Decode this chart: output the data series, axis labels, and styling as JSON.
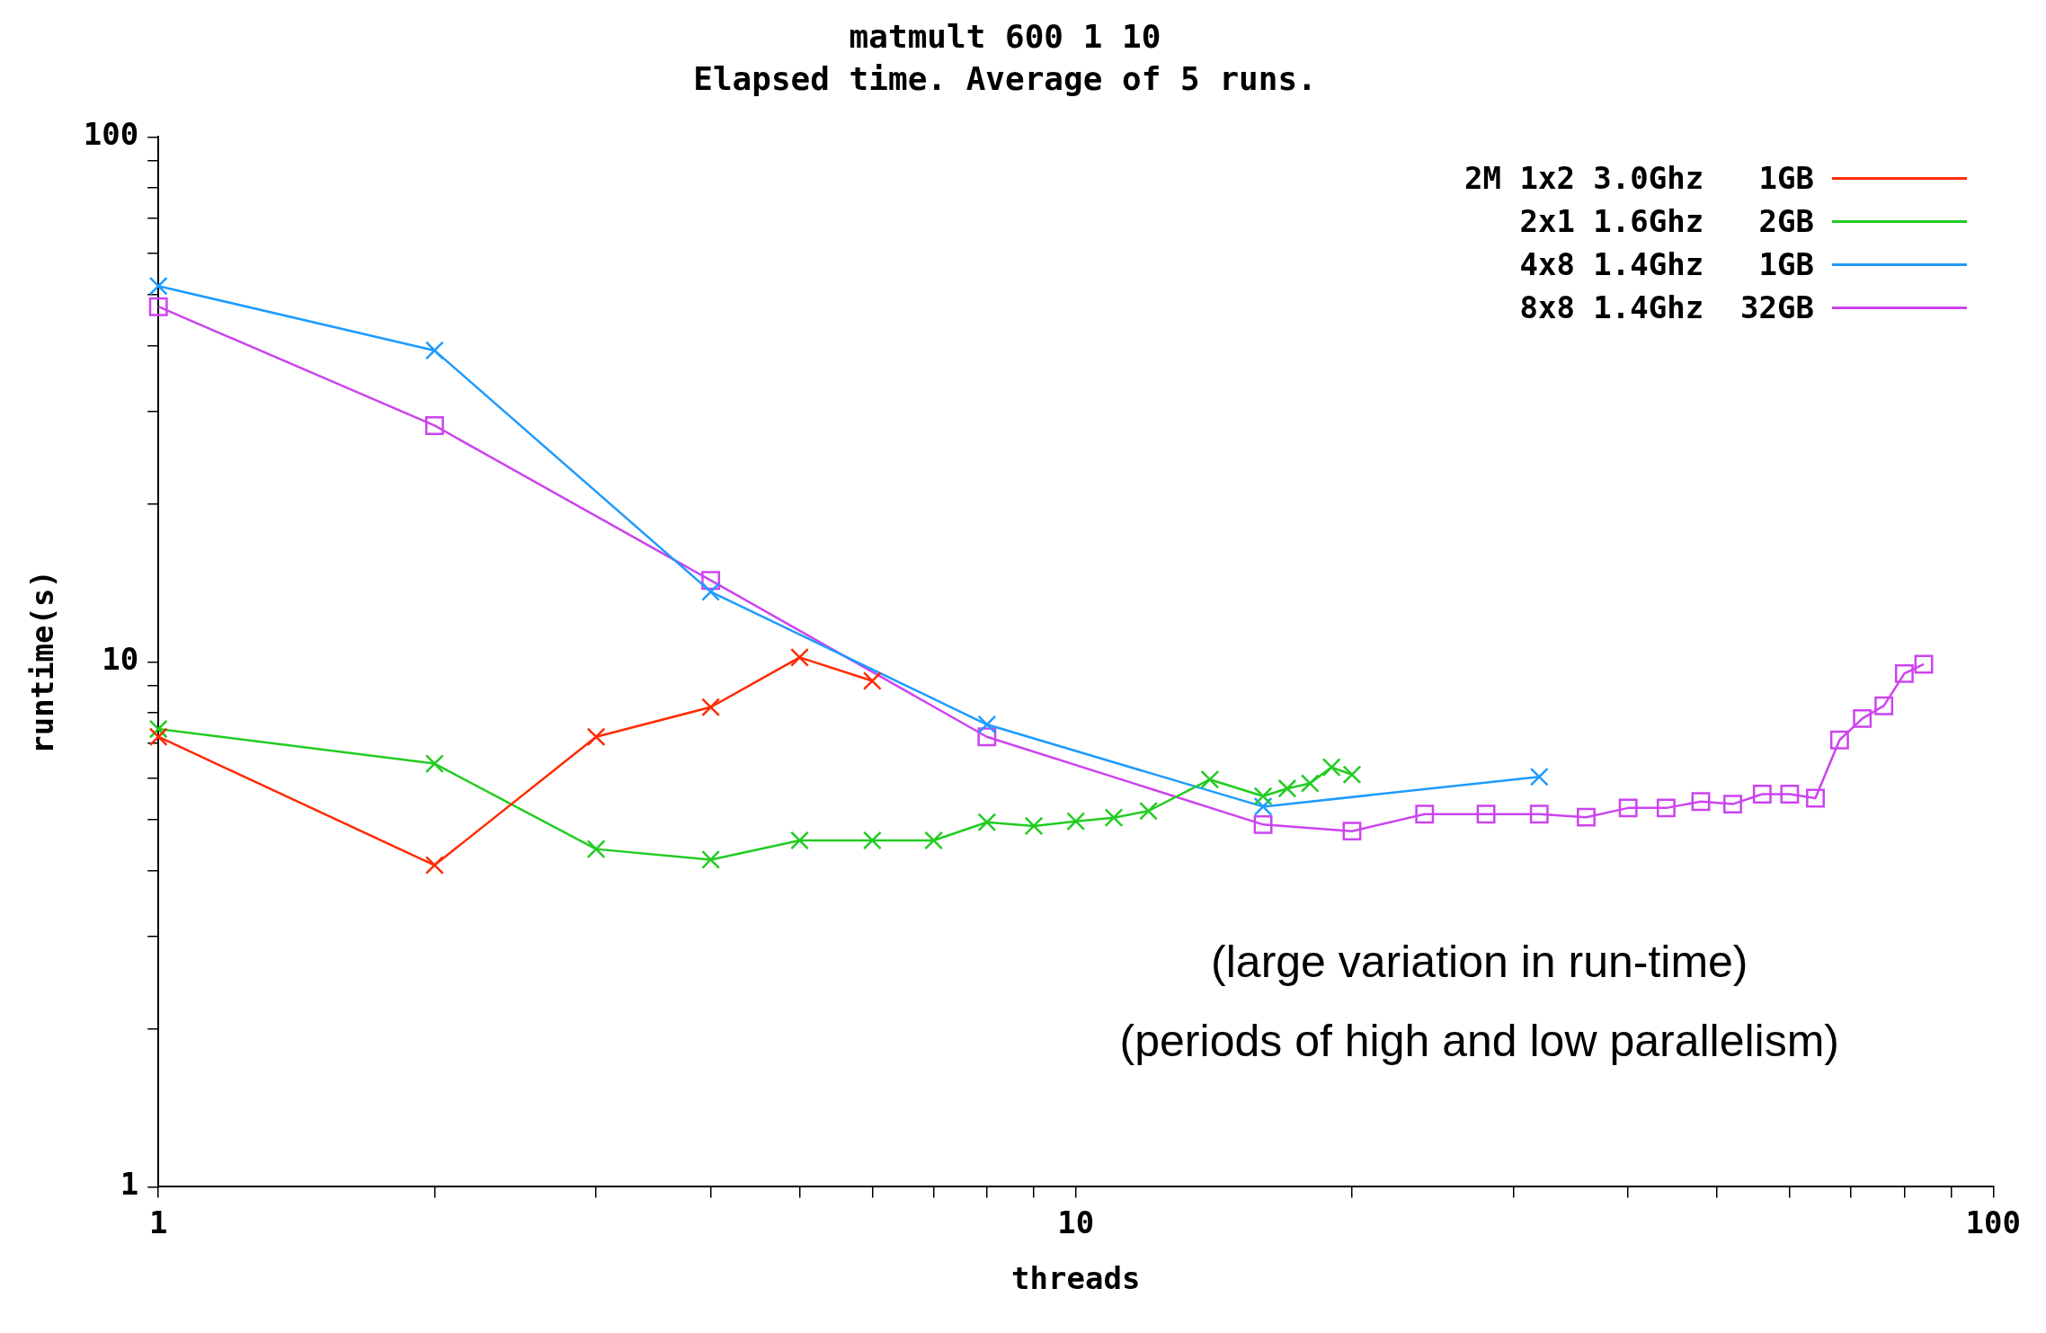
{
  "chart_data": {
    "type": "line",
    "title": "matmult 600 1 10",
    "subtitle": "Elapsed time. Average of 5 runs.",
    "xlabel": "threads",
    "ylabel": "runtime(s)",
    "log": "xy",
    "grid": false,
    "legend": "top right",
    "line_style": "solid",
    "xlim": [
      1,
      100
    ],
    "ylim": [
      1,
      100
    ],
    "xticks": [
      1,
      {
        "value": 2,
        "label": null
      },
      {
        "value": 3,
        "label": null
      },
      {
        "value": 4,
        "label": null
      },
      {
        "value": 5,
        "label": null
      },
      {
        "value": 6,
        "label": null
      },
      {
        "value": 7,
        "label": null
      },
      {
        "value": 8,
        "label": null
      },
      {
        "value": 9,
        "label": null
      },
      10,
      {
        "value": 20,
        "label": null
      },
      {
        "value": 30,
        "label": null
      },
      {
        "value": 40,
        "label": null
      },
      {
        "value": 50,
        "label": null
      },
      {
        "value": 60,
        "label": null
      },
      {
        "value": 70,
        "label": null
      },
      {
        "value": 80,
        "label": null
      },
      {
        "value": 90,
        "label": null
      },
      100
    ],
    "yticks": [
      1,
      {
        "value": 2,
        "label": null
      },
      {
        "value": 3,
        "label": null
      },
      {
        "value": 4,
        "label": null
      },
      {
        "value": 5,
        "label": null
      },
      {
        "value": 6,
        "label": null
      },
      {
        "value": 7,
        "label": null
      },
      {
        "value": 8,
        "label": null
      },
      {
        "value": 9,
        "label": null
      },
      10,
      {
        "value": 20,
        "label": null
      },
      {
        "value": 30,
        "label": null
      },
      {
        "value": 40,
        "label": null
      },
      {
        "value": 50,
        "label": null
      },
      {
        "value": 60,
        "label": null
      },
      {
        "value": 70,
        "label": null
      },
      {
        "value": 80,
        "label": null
      },
      {
        "value": 90,
        "label": null
      },
      100
    ],
    "series": [
      {
        "name": "2M 1x2 3.0Ghz   1GB",
        "color": "#ff2a00",
        "marker": "cross",
        "x": [
          1,
          2,
          3,
          4,
          5,
          6
        ],
        "values": [
          7.2,
          4.1,
          7.2,
          8.2,
          10.2,
          9.2
        ]
      },
      {
        "name": "2x1 1.6Ghz   2GB",
        "color": "#22cc22",
        "marker": "cross",
        "x": [
          1,
          2,
          3,
          4,
          5,
          6,
          7,
          8,
          9,
          10,
          11,
          12,
          14,
          16,
          17,
          18,
          19,
          20
        ],
        "values": [
          7.45,
          6.4,
          4.4,
          4.2,
          4.57,
          4.57,
          4.57,
          4.95,
          4.87,
          4.97,
          5.05,
          5.2,
          5.97,
          5.55,
          5.74,
          5.87,
          6.3,
          6.1
        ]
      },
      {
        "name": "4x8 1.4Ghz   1GB",
        "color": "#1e9bff",
        "marker": "cross",
        "x": [
          1,
          2,
          4,
          8,
          16,
          32
        ],
        "values": [
          52,
          39.2,
          13.6,
          7.6,
          5.3,
          6.04
        ]
      },
      {
        "name": "8x8 1.4Ghz  32GB",
        "color": "#cc44ee",
        "marker": "square",
        "x": [
          1,
          2,
          4,
          8,
          16,
          20,
          24,
          28,
          32,
          36,
          40,
          44,
          48,
          52,
          56,
          60,
          64,
          68,
          72,
          76,
          80,
          84
        ],
        "values": [
          47.5,
          28.2,
          14.3,
          7.2,
          4.9,
          4.76,
          5.13,
          5.13,
          5.13,
          5.06,
          5.27,
          5.27,
          5.42,
          5.36,
          5.6,
          5.6,
          5.5,
          7.1,
          7.8,
          8.25,
          9.5,
          9.9
        ]
      }
    ],
    "annotations": [
      "(large variation in run-time)",
      "(periods of high and low parallelism)"
    ]
  }
}
